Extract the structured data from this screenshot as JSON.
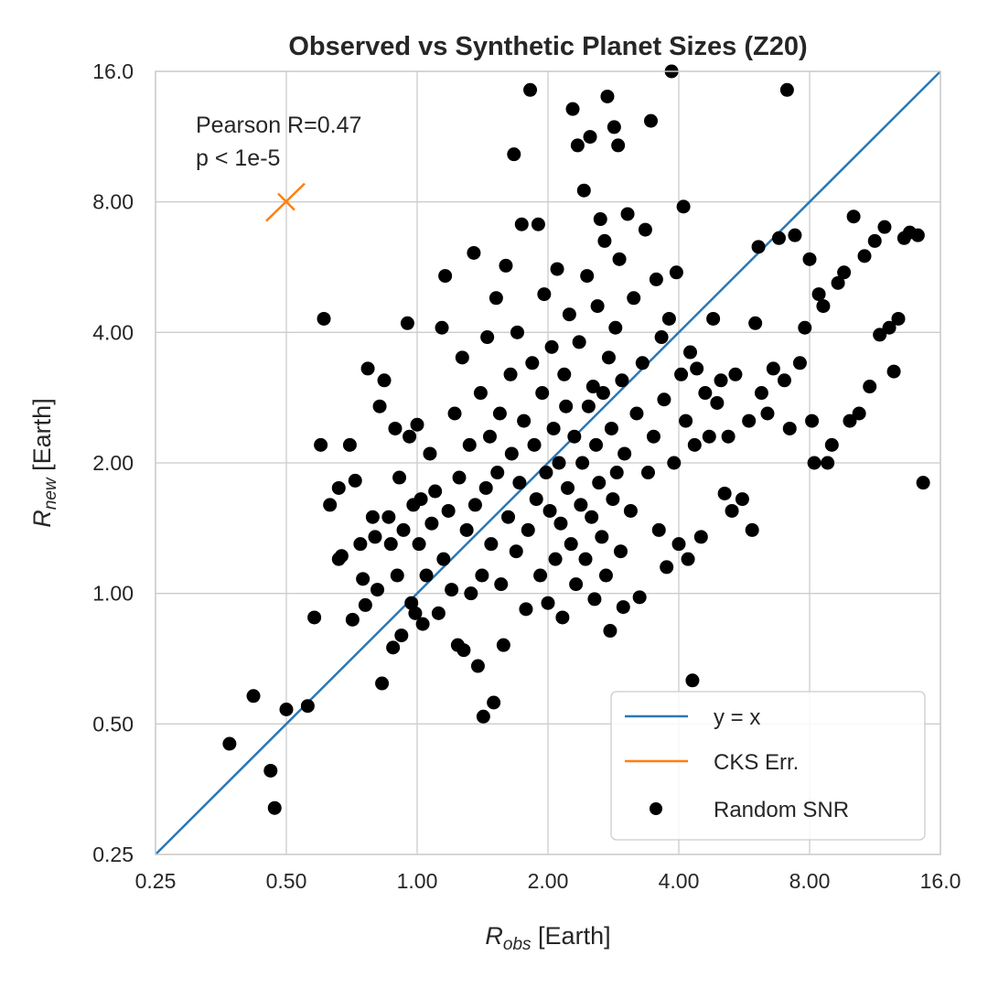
{
  "chart_data": {
    "type": "scatter",
    "title": "Observed vs Synthetic Planet Sizes (Z20)",
    "xlabel_main": "R",
    "xlabel_sub": "obs",
    "xlabel_unit": " [Earth]",
    "ylabel_main": "R",
    "ylabel_sub": "new",
    "ylabel_unit": " [Earth]",
    "xscale": "log2",
    "yscale": "log2",
    "xlim": [
      0.25,
      16.0
    ],
    "ylim": [
      0.25,
      16.0
    ],
    "xticks": [
      0.25,
      0.5,
      1.0,
      2.0,
      4.0,
      8.0,
      16.0
    ],
    "xtick_labels": [
      "0.25",
      "0.50",
      "1.00",
      "2.00",
      "4.00",
      "8.00",
      "16.0"
    ],
    "yticks": [
      0.25,
      0.5,
      1.0,
      2.0,
      4.0,
      8.0,
      16.0
    ],
    "ytick_labels": [
      "0.25",
      "0.50",
      "1.00",
      "2.00",
      "4.00",
      "8.00",
      "16.0"
    ],
    "grid": true,
    "annotation_lines": [
      "Pearson R=0.47",
      "p < 1e-5"
    ],
    "cks_err_marker": {
      "x": 0.5,
      "y": 8.0
    },
    "legend": {
      "location": "lower-right",
      "entries": [
        {
          "label": "y = x",
          "kind": "line",
          "color": "#2a78b6"
        },
        {
          "label": "CKS Err.",
          "kind": "line",
          "color": "#ff7f0e"
        },
        {
          "label": "Random SNR",
          "kind": "marker",
          "color": "#000000"
        }
      ]
    },
    "colors": {
      "identity_line": "#2a78b6",
      "cks_err": "#ff7f0e",
      "points": "#000000",
      "grid": "#cccccc",
      "spine": "#cccccc"
    },
    "series": [
      {
        "name": "Random SNR",
        "points": [
          [
            0.37,
            0.45
          ],
          [
            0.42,
            0.58
          ],
          [
            0.46,
            0.39
          ],
          [
            0.47,
            0.32
          ],
          [
            0.5,
            0.54
          ],
          [
            0.56,
            0.55
          ],
          [
            0.58,
            0.88
          ],
          [
            0.6,
            2.2
          ],
          [
            0.61,
            4.3
          ],
          [
            0.63,
            1.6
          ],
          [
            0.66,
            1.75
          ],
          [
            0.66,
            1.2
          ],
          [
            0.67,
            1.22
          ],
          [
            0.7,
            2.2
          ],
          [
            0.71,
            0.87
          ],
          [
            0.72,
            1.82
          ],
          [
            0.74,
            1.3
          ],
          [
            0.75,
            1.08
          ],
          [
            0.76,
            0.94
          ],
          [
            0.77,
            3.3
          ],
          [
            0.79,
            1.5
          ],
          [
            0.8,
            1.35
          ],
          [
            0.81,
            1.02
          ],
          [
            0.82,
            2.7
          ],
          [
            0.83,
            0.62
          ],
          [
            0.84,
            3.1
          ],
          [
            0.86,
            1.5
          ],
          [
            0.87,
            1.3
          ],
          [
            0.88,
            0.75
          ],
          [
            0.89,
            2.4
          ],
          [
            0.9,
            1.1
          ],
          [
            0.91,
            1.85
          ],
          [
            0.92,
            0.8
          ],
          [
            0.93,
            1.4
          ],
          [
            0.95,
            4.2
          ],
          [
            0.96,
            2.3
          ],
          [
            0.97,
            0.95
          ],
          [
            0.98,
            1.6
          ],
          [
            0.99,
            0.9
          ],
          [
            1.0,
            2.45
          ],
          [
            1.01,
            1.3
          ],
          [
            1.02,
            1.65
          ],
          [
            1.03,
            0.85
          ],
          [
            1.05,
            1.1
          ],
          [
            1.07,
            2.1
          ],
          [
            1.08,
            1.45
          ],
          [
            1.1,
            1.72
          ],
          [
            1.12,
            0.9
          ],
          [
            1.14,
            4.1
          ],
          [
            1.15,
            1.2
          ],
          [
            1.16,
            5.4
          ],
          [
            1.18,
            1.55
          ],
          [
            1.2,
            1.02
          ],
          [
            1.22,
            2.6
          ],
          [
            1.24,
            0.76
          ],
          [
            1.25,
            1.85
          ],
          [
            1.27,
            3.5
          ],
          [
            1.28,
            0.74
          ],
          [
            1.3,
            1.4
          ],
          [
            1.32,
            2.2
          ],
          [
            1.33,
            1.0
          ],
          [
            1.35,
            6.1
          ],
          [
            1.36,
            1.6
          ],
          [
            1.38,
            0.68
          ],
          [
            1.4,
            2.9
          ],
          [
            1.41,
            1.1
          ],
          [
            1.42,
            0.52
          ],
          [
            1.44,
            1.75
          ],
          [
            1.45,
            3.9
          ],
          [
            1.47,
            2.3
          ],
          [
            1.48,
            1.3
          ],
          [
            1.5,
            0.56
          ],
          [
            1.52,
            4.8
          ],
          [
            1.53,
            1.9
          ],
          [
            1.55,
            2.6
          ],
          [
            1.56,
            1.05
          ],
          [
            1.58,
            0.76
          ],
          [
            1.6,
            5.7
          ],
          [
            1.62,
            1.5
          ],
          [
            1.64,
            3.2
          ],
          [
            1.65,
            2.1
          ],
          [
            1.67,
            10.3
          ],
          [
            1.69,
            1.25
          ],
          [
            1.7,
            4.0
          ],
          [
            1.72,
            1.8
          ],
          [
            1.74,
            7.1
          ],
          [
            1.76,
            2.5
          ],
          [
            1.78,
            0.92
          ],
          [
            1.8,
            1.4
          ],
          [
            1.82,
            14.5
          ],
          [
            1.84,
            3.4
          ],
          [
            1.86,
            2.2
          ],
          [
            1.88,
            1.65
          ],
          [
            1.9,
            7.1
          ],
          [
            1.92,
            1.1
          ],
          [
            1.94,
            2.9
          ],
          [
            1.96,
            4.9
          ],
          [
            1.98,
            1.9
          ],
          [
            2.0,
            0.95
          ],
          [
            2.02,
            1.55
          ],
          [
            2.04,
            3.7
          ],
          [
            2.06,
            2.4
          ],
          [
            2.08,
            1.2
          ],
          [
            2.1,
            5.6
          ],
          [
            2.12,
            2.0
          ],
          [
            2.14,
            1.45
          ],
          [
            2.16,
            0.88
          ],
          [
            2.18,
            3.2
          ],
          [
            2.2,
            2.7
          ],
          [
            2.22,
            1.75
          ],
          [
            2.24,
            4.4
          ],
          [
            2.26,
            1.3
          ],
          [
            2.28,
            13.1
          ],
          [
            2.3,
            2.3
          ],
          [
            2.32,
            1.05
          ],
          [
            2.34,
            10.8
          ],
          [
            2.36,
            3.8
          ],
          [
            2.38,
            1.6
          ],
          [
            2.4,
            2.0
          ],
          [
            2.42,
            8.5
          ],
          [
            2.44,
            1.2
          ],
          [
            2.46,
            5.4
          ],
          [
            2.48,
            2.7
          ],
          [
            2.5,
            11.3
          ],
          [
            2.52,
            1.5
          ],
          [
            2.54,
            3.0
          ],
          [
            2.56,
            0.97
          ],
          [
            2.58,
            2.2
          ],
          [
            2.6,
            4.6
          ],
          [
            2.62,
            1.8
          ],
          [
            2.64,
            7.3
          ],
          [
            2.66,
            1.35
          ],
          [
            2.68,
            2.9
          ],
          [
            2.7,
            6.5
          ],
          [
            2.72,
            1.1
          ],
          [
            2.74,
            14.0
          ],
          [
            2.76,
            3.5
          ],
          [
            2.78,
            0.82
          ],
          [
            2.8,
            2.4
          ],
          [
            2.82,
            1.65
          ],
          [
            2.84,
            11.9
          ],
          [
            2.86,
            4.1
          ],
          [
            2.88,
            1.9
          ],
          [
            2.9,
            10.8
          ],
          [
            2.92,
            5.9
          ],
          [
            2.94,
            1.25
          ],
          [
            2.96,
            3.1
          ],
          [
            2.98,
            0.93
          ],
          [
            3.0,
            2.1
          ],
          [
            3.05,
            7.5
          ],
          [
            3.1,
            1.55
          ],
          [
            3.15,
            4.8
          ],
          [
            3.2,
            2.6
          ],
          [
            3.25,
            0.98
          ],
          [
            3.3,
            3.4
          ],
          [
            3.35,
            6.9
          ],
          [
            3.4,
            1.9
          ],
          [
            3.45,
            12.3
          ],
          [
            3.5,
            2.3
          ],
          [
            3.55,
            5.3
          ],
          [
            3.6,
            1.4
          ],
          [
            3.65,
            3.9
          ],
          [
            3.7,
            2.8
          ],
          [
            3.75,
            1.15
          ],
          [
            3.8,
            4.3
          ],
          [
            3.85,
            16.0
          ],
          [
            3.9,
            2.0
          ],
          [
            3.95,
            5.5
          ],
          [
            4.0,
            1.3
          ],
          [
            4.05,
            3.2
          ],
          [
            4.1,
            7.8
          ],
          [
            4.15,
            2.5
          ],
          [
            4.2,
            1.2
          ],
          [
            4.25,
            3.6
          ],
          [
            4.3,
            0.63
          ],
          [
            4.35,
            2.2
          ],
          [
            4.4,
            3.3
          ],
          [
            4.5,
            1.35
          ],
          [
            4.6,
            2.9
          ],
          [
            4.7,
            2.3
          ],
          [
            4.8,
            4.3
          ],
          [
            4.9,
            2.75
          ],
          [
            5.0,
            3.1
          ],
          [
            5.1,
            1.7
          ],
          [
            5.2,
            2.3
          ],
          [
            5.3,
            1.55
          ],
          [
            5.4,
            3.2
          ],
          [
            5.6,
            1.65
          ],
          [
            5.8,
            2.5
          ],
          [
            5.9,
            1.4
          ],
          [
            6.0,
            4.2
          ],
          [
            6.1,
            6.3
          ],
          [
            6.2,
            2.9
          ],
          [
            6.4,
            2.6
          ],
          [
            6.6,
            3.3
          ],
          [
            6.8,
            6.6
          ],
          [
            7.0,
            3.1
          ],
          [
            7.1,
            14.5
          ],
          [
            7.2,
            2.4
          ],
          [
            7.4,
            6.7
          ],
          [
            7.6,
            3.4
          ],
          [
            7.8,
            4.1
          ],
          [
            8.0,
            5.9
          ],
          [
            8.1,
            2.5
          ],
          [
            8.2,
            2.0
          ],
          [
            8.4,
            4.9
          ],
          [
            8.6,
            4.6
          ],
          [
            8.8,
            2.0
          ],
          [
            9.0,
            2.2
          ],
          [
            9.3,
            5.2
          ],
          [
            9.6,
            5.5
          ],
          [
            9.9,
            2.5
          ],
          [
            10.1,
            7.4
          ],
          [
            10.4,
            2.6
          ],
          [
            10.7,
            6.0
          ],
          [
            11.0,
            3.0
          ],
          [
            11.3,
            6.5
          ],
          [
            11.6,
            3.95
          ],
          [
            11.9,
            7.0
          ],
          [
            12.2,
            4.1
          ],
          [
            12.5,
            3.25
          ],
          [
            12.8,
            4.3
          ],
          [
            13.2,
            6.6
          ],
          [
            13.6,
            6.8
          ],
          [
            14.2,
            6.7
          ],
          [
            14.6,
            1.8
          ]
        ]
      }
    ]
  }
}
